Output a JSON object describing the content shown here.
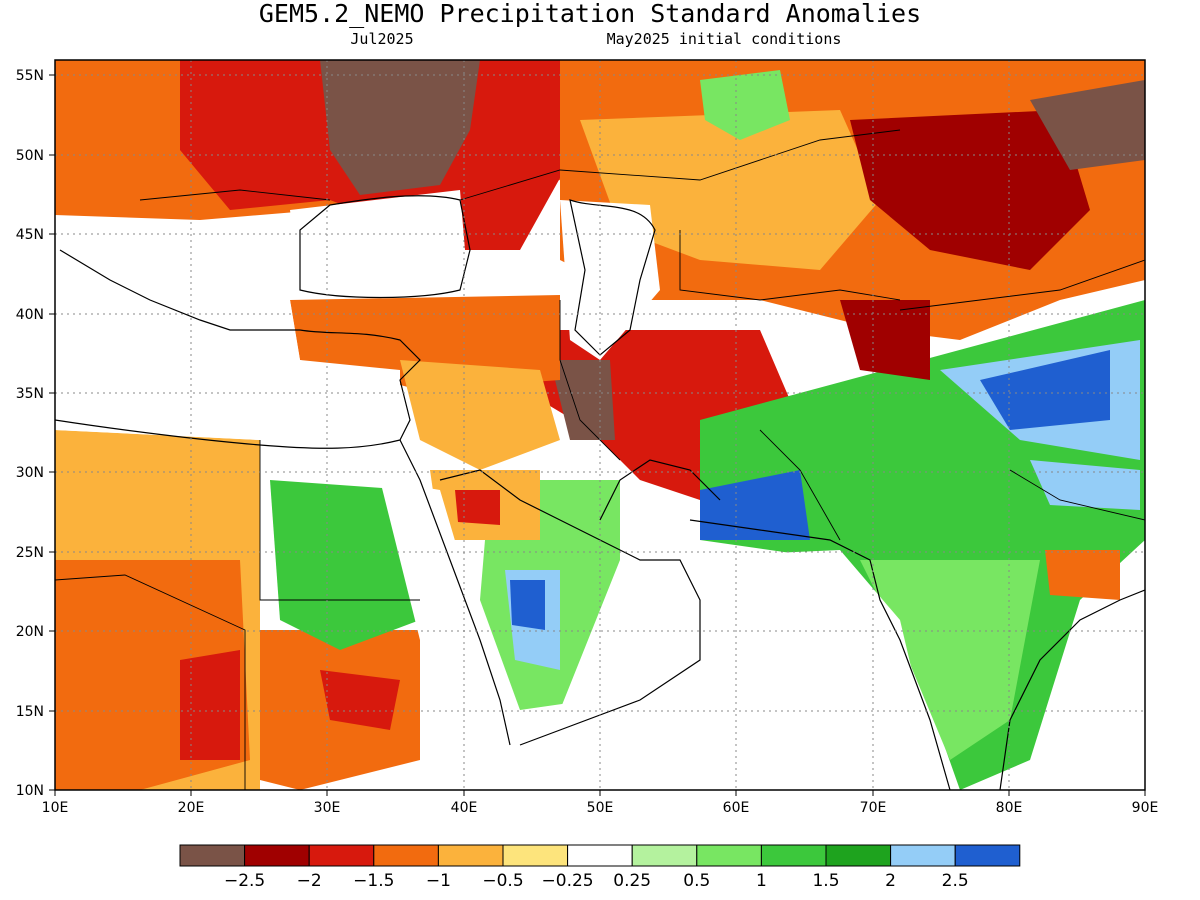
{
  "title": "GEM5.2_NEMO Precipitation Standard Anomalies",
  "valid_month": "Jul2025",
  "init_conditions": "May2025 initial conditions",
  "map": {
    "projection": "lat-lon",
    "lon_range": [
      10,
      90
    ],
    "lat_range": [
      10,
      56
    ],
    "lon_ticks": [
      "10E",
      "20E",
      "30E",
      "40E",
      "50E",
      "60E",
      "70E",
      "80E",
      "90E"
    ],
    "lat_ticks": [
      "10N",
      "15N",
      "20N",
      "25N",
      "30N",
      "35N",
      "40N",
      "45N",
      "50N",
      "55N"
    ],
    "grid": "dotted"
  },
  "colorbar": {
    "colors": [
      "#7a5347",
      "#a00000",
      "#d7190d",
      "#f26b0f",
      "#fbb23c",
      "#fde47c",
      "#ffffff",
      "#b4f29e",
      "#78e662",
      "#3cc83c",
      "#1ea31e",
      "#94cdf7",
      "#1f5fd0"
    ],
    "labels": [
      "−2.5",
      "−2",
      "−1.5",
      "−1",
      "−0.5",
      "−0.25",
      "0.25",
      "0.5",
      "1",
      "1.5",
      "2",
      "2.5"
    ]
  }
}
